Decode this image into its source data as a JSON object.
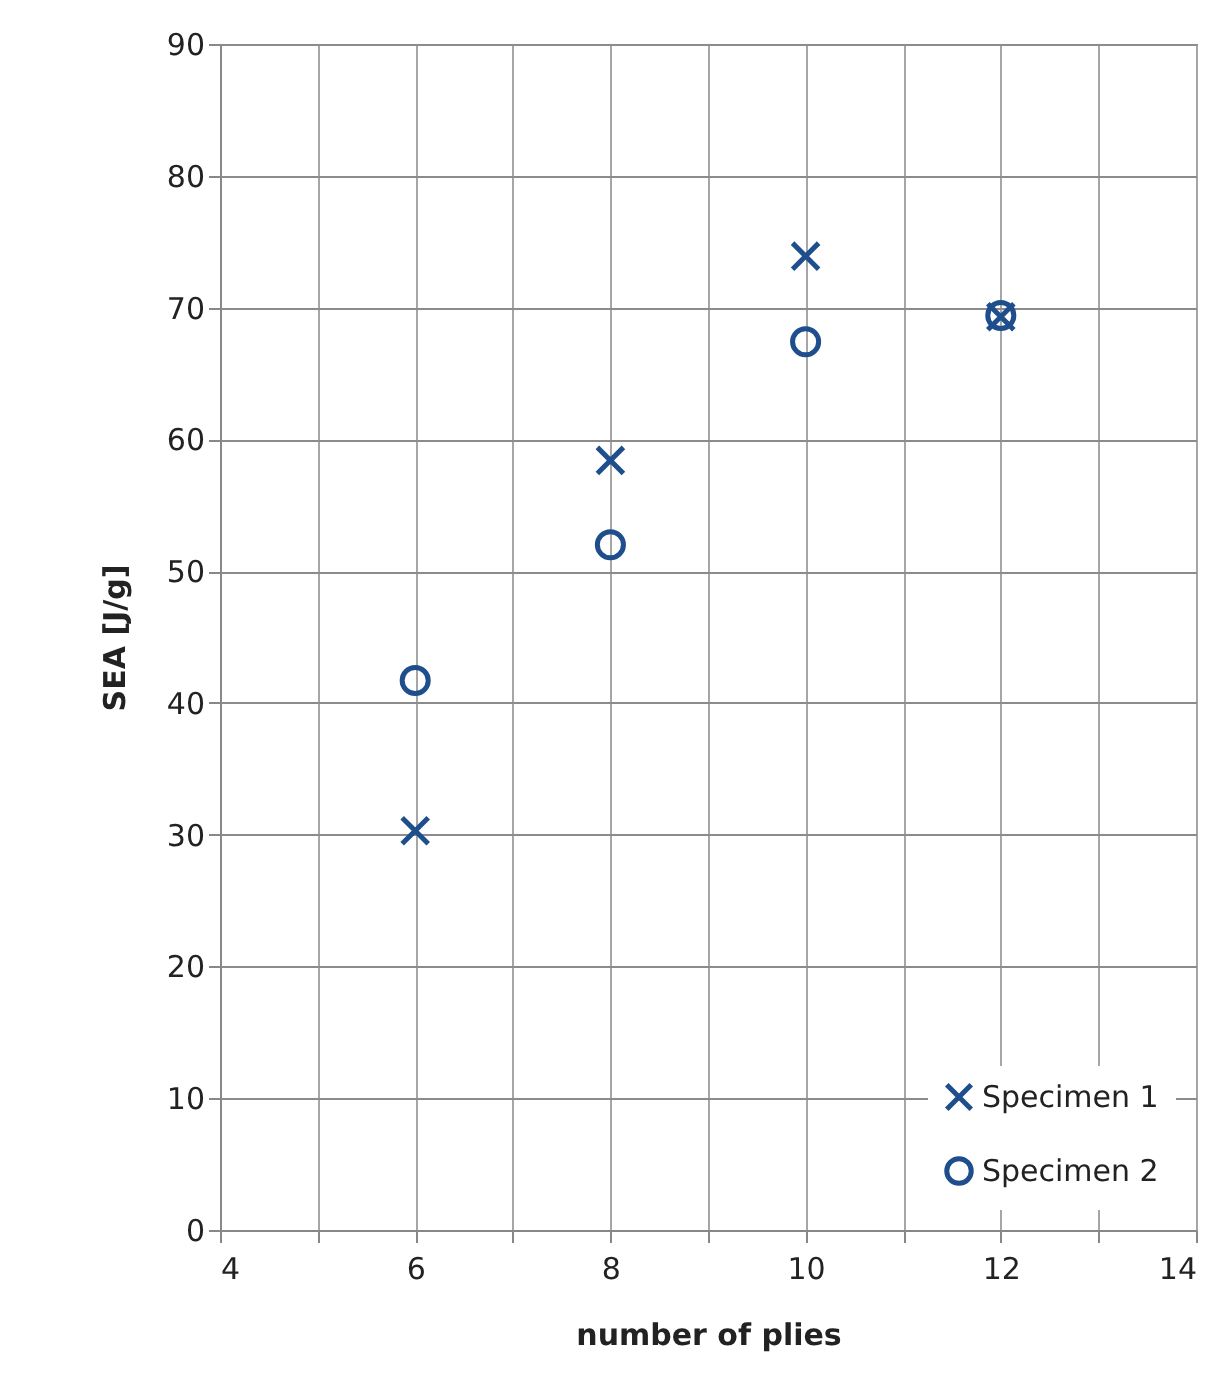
{
  "chart_data": {
    "type": "scatter",
    "xlabel": "number of plies",
    "ylabel": "SEA [J/g]",
    "xlim": [
      4,
      14
    ],
    "xticks": [
      4,
      {
        "value": 5,
        "label": null
      },
      6,
      {
        "value": 7,
        "label": null
      },
      8,
      {
        "value": 9,
        "label": null
      },
      10,
      {
        "value": 11,
        "label": null
      },
      12,
      {
        "value": 13,
        "label": null
      },
      14
    ],
    "ylim": [
      0,
      90
    ],
    "yticks": [
      0,
      10,
      20,
      30,
      40,
      50,
      60,
      70,
      80,
      90
    ],
    "grid": true,
    "legend": "bottom right",
    "x": [
      6,
      8,
      10,
      12
    ],
    "series": [
      {
        "name": "Specimen 1",
        "color": "#1f4e8c",
        "marker": "cross",
        "values": [
          30.3,
          58.4,
          73.9,
          69.3
        ]
      },
      {
        "name": "Specimen 2",
        "color": "#1f4e8c",
        "marker": "circle",
        "values": [
          41.7,
          52.0,
          67.4,
          69.4
        ]
      }
    ]
  }
}
